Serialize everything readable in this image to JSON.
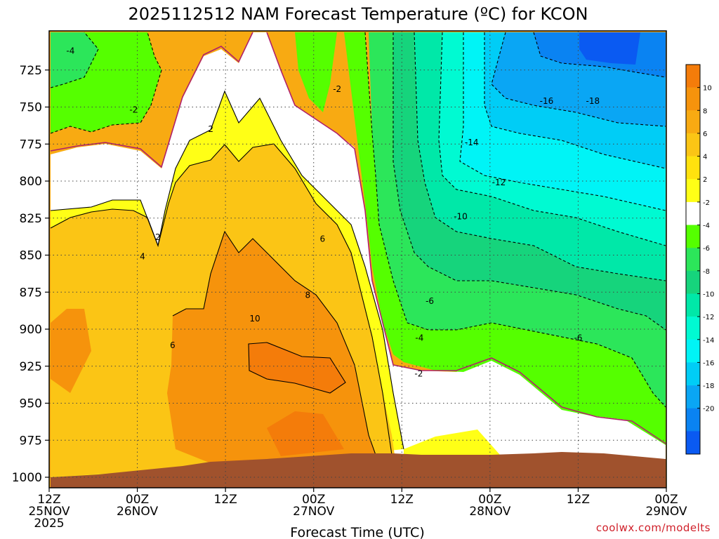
{
  "chart_data": {
    "type": "heatmap",
    "title": "2025112512 NAM Forecast Temperature (ºC) for KCON",
    "xlabel": "Forecast Time (UTC)",
    "credit": "coolwx.com/modelts",
    "y_axis": {
      "label": "",
      "range": [
        1010,
        700
      ],
      "ticks": [
        725,
        750,
        775,
        800,
        825,
        850,
        875,
        900,
        925,
        950,
        975,
        1000
      ]
    },
    "x_axis": {
      "range_hours": [
        0,
        84
      ],
      "ticks": [
        {
          "h": 0,
          "lines": [
            "12Z",
            "25NOV",
            "2025"
          ]
        },
        {
          "h": 12,
          "lines": [
            "00Z",
            "26NOV"
          ]
        },
        {
          "h": 24,
          "lines": [
            "12Z"
          ]
        },
        {
          "h": 36,
          "lines": [
            "00Z",
            "27NOV"
          ]
        },
        {
          "h": 48,
          "lines": [
            "12Z"
          ]
        },
        {
          "h": 60,
          "lines": [
            "00Z",
            "28NOV"
          ]
        },
        {
          "h": 72,
          "lines": [
            "12Z"
          ]
        },
        {
          "h": 84,
          "lines": [
            "00Z",
            "29NOV"
          ]
        }
      ]
    },
    "grid": true,
    "colorbar": {
      "placement": "right",
      "levels": [
        12,
        10,
        8,
        6,
        4,
        2,
        -2,
        -4,
        -6,
        -8,
        -10,
        -12,
        -14,
        -16,
        -18,
        -20,
        -22
      ],
      "labels": [
        "10",
        "8",
        "6",
        "4",
        "2",
        "-2",
        "-4",
        "-6",
        "-8",
        "-10",
        "-12",
        "-14",
        "-16",
        "-18",
        "-20"
      ],
      "colors": [
        "#f47c0a",
        "#f6930c",
        "#f8aa12",
        "#fbc515",
        "#ffe20e",
        "#ffff16",
        "#ffffff",
        "#55ff00",
        "#2ce65a",
        "#16d47c",
        "#00e8a8",
        "#00fad2",
        "#00f4f6",
        "#00cdf6",
        "#0aa6f4",
        "#0a83f2",
        "#0a5af2"
      ]
    },
    "ground_color": "#a0522d",
    "contour_labels": [
      {
        "text": "-4",
        "h": 2.9,
        "p": 712
      },
      {
        "text": "-2",
        "h": 11.5,
        "p": 752
      },
      {
        "text": "2",
        "h": 22,
        "p": 765
      },
      {
        "text": "-2",
        "h": 39.2,
        "p": 738
      },
      {
        "text": "2",
        "h": 14.8,
        "p": 838
      },
      {
        "text": "4",
        "h": 12.7,
        "p": 851
      },
      {
        "text": "6",
        "h": 16.8,
        "p": 911
      },
      {
        "text": "10",
        "h": 28,
        "p": 893
      },
      {
        "text": "8",
        "h": 35.2,
        "p": 877
      },
      {
        "text": "6",
        "h": 37.2,
        "p": 839
      },
      {
        "text": "-6",
        "h": 51.8,
        "p": 881
      },
      {
        "text": "-4",
        "h": 50.4,
        "p": 906
      },
      {
        "text": "-2",
        "h": 50.3,
        "p": 930
      },
      {
        "text": "-6",
        "h": 72,
        "p": 906
      },
      {
        "text": "-10",
        "h": 56,
        "p": 824
      },
      {
        "text": "-12",
        "h": 61.2,
        "p": 801
      },
      {
        "text": "-14",
        "h": 57.5,
        "p": 774
      },
      {
        "text": "-16",
        "h": 67.7,
        "p": 746
      },
      {
        "text": "-18",
        "h": 74,
        "p": 746
      }
    ]
  }
}
